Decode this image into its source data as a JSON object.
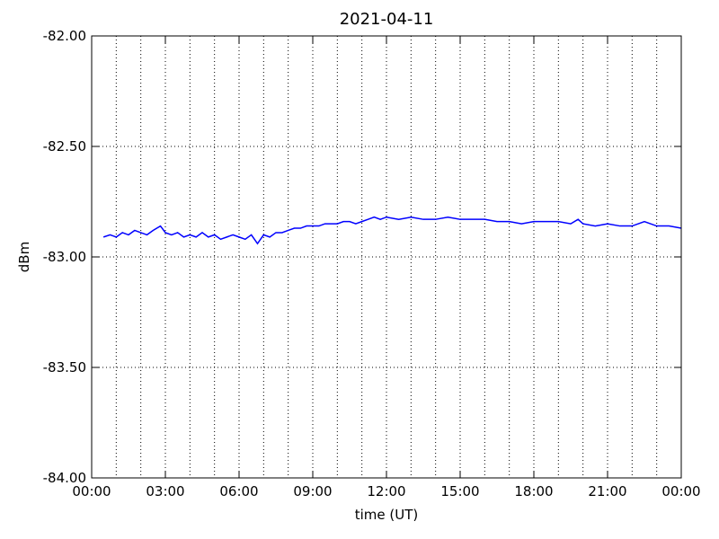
{
  "chart_data": {
    "type": "line",
    "title": "2021-04-11",
    "xlabel": "time (UT)",
    "ylabel": "dBm",
    "xlim": [
      0,
      24
    ],
    "ylim": [
      -84,
      -82
    ],
    "color": "#0000ff",
    "grid": true,
    "xticks": [
      {
        "value": 0,
        "label": "00:00"
      },
      {
        "value": 3,
        "label": "03:00"
      },
      {
        "value": 6,
        "label": "06:00"
      },
      {
        "value": 9,
        "label": "09:00"
      },
      {
        "value": 12,
        "label": "12:00"
      },
      {
        "value": 15,
        "label": "15:00"
      },
      {
        "value": 18,
        "label": "18:00"
      },
      {
        "value": 21,
        "label": "21:00"
      },
      {
        "value": 24,
        "label": "00:00"
      }
    ],
    "xgrid": [
      1,
      2,
      3,
      4,
      5,
      6,
      7,
      8,
      9,
      10,
      11,
      12,
      13,
      14,
      15,
      16,
      17,
      18,
      19,
      20,
      21,
      22,
      23
    ],
    "yticks": [
      {
        "value": -84,
        "label": "-84.00"
      },
      {
        "value": -83.5,
        "label": "-83.50"
      },
      {
        "value": -83,
        "label": "-83.00"
      },
      {
        "value": -82.5,
        "label": "-82.50"
      },
      {
        "value": -82,
        "label": "-82.00"
      }
    ],
    "x": [
      0.48,
      0.75,
      1.0,
      1.25,
      1.5,
      1.75,
      2.0,
      2.25,
      2.5,
      2.8,
      3.0,
      3.25,
      3.5,
      3.75,
      4.0,
      4.25,
      4.5,
      4.75,
      5.0,
      5.25,
      5.5,
      5.75,
      6.0,
      6.25,
      6.5,
      6.75,
      7.0,
      7.25,
      7.5,
      7.75,
      8.0,
      8.25,
      8.5,
      8.75,
      9.0,
      9.25,
      9.5,
      9.75,
      10.0,
      10.25,
      10.5,
      10.75,
      11.0,
      11.25,
      11.5,
      11.75,
      12.0,
      12.5,
      13.0,
      13.5,
      14.0,
      14.5,
      15.0,
      15.5,
      16.0,
      16.5,
      17.0,
      17.5,
      18.0,
      18.5,
      19.0,
      19.5,
      19.8,
      20.0,
      20.5,
      21.0,
      21.5,
      22.0,
      22.5,
      23.0,
      23.5,
      24.0
    ],
    "values": [
      -82.91,
      -82.9,
      -82.91,
      -82.89,
      -82.9,
      -82.88,
      -82.89,
      -82.9,
      -82.88,
      -82.86,
      -82.89,
      -82.9,
      -82.89,
      -82.91,
      -82.9,
      -82.91,
      -82.89,
      -82.91,
      -82.9,
      -82.92,
      -82.91,
      -82.9,
      -82.91,
      -82.92,
      -82.9,
      -82.94,
      -82.9,
      -82.91,
      -82.89,
      -82.89,
      -82.88,
      -82.87,
      -82.87,
      -82.86,
      -82.86,
      -82.86,
      -82.85,
      -82.85,
      -82.85,
      -82.84,
      -82.84,
      -82.85,
      -82.84,
      -82.83,
      -82.82,
      -82.83,
      -82.82,
      -82.83,
      -82.82,
      -82.83,
      -82.83,
      -82.82,
      -82.83,
      -82.83,
      -82.83,
      -82.84,
      -82.84,
      -82.85,
      -82.84,
      -82.84,
      -82.84,
      -82.85,
      -82.83,
      -82.85,
      -82.86,
      -82.85,
      -82.86,
      -82.86,
      -82.84,
      -82.86,
      -82.86,
      -82.87
    ]
  }
}
